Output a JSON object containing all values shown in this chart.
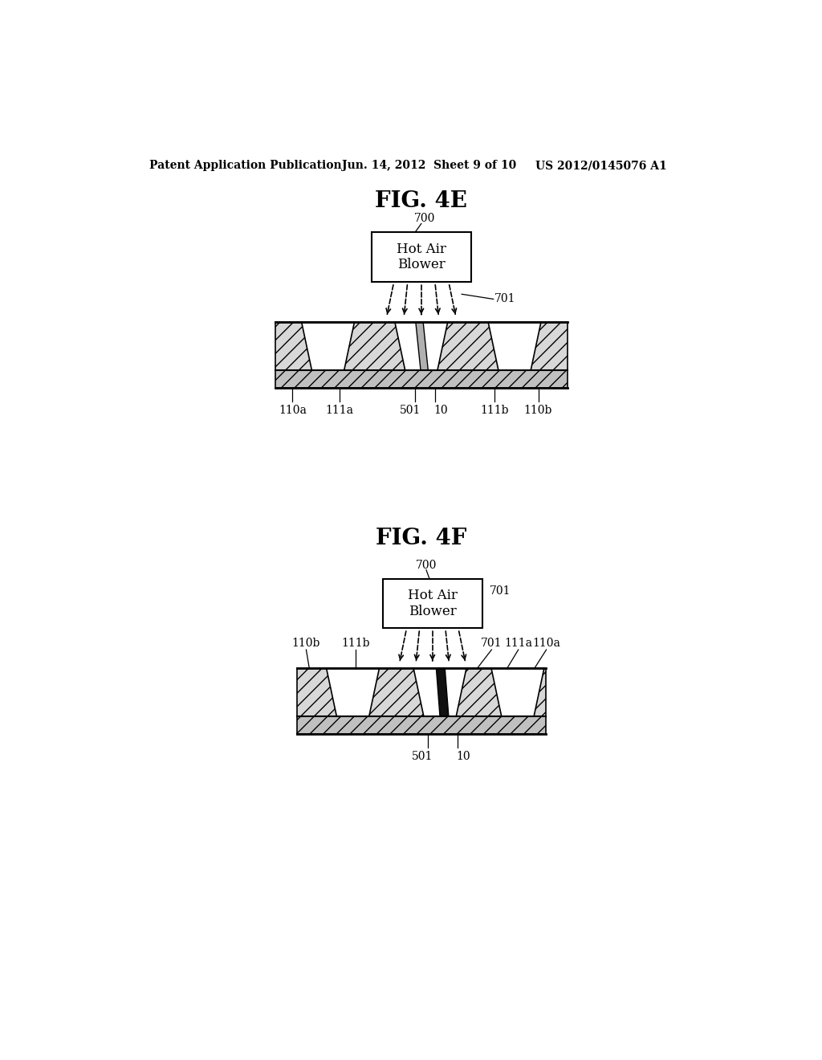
{
  "bg_color": "#ffffff",
  "header_left": "Patent Application Publication",
  "header_mid": "Jun. 14, 2012  Sheet 9 of 10",
  "header_right": "US 2012/0145076 A1",
  "fig4e_title": "FIG. 4E",
  "fig4f_title": "FIG. 4F",
  "box_label": "Hot Air\nBlower",
  "hatch_fc": "#d8d8d8",
  "base_hatch_fc": "#c0c0c0",
  "wire_gray": "#b0b0b0",
  "wire_black": "#111111",
  "line_color": "#000000"
}
